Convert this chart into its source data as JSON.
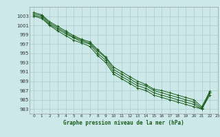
{
  "xlabel": "Graphe pression niveau de la mer (hPa)",
  "background_color": "#cce8e8",
  "grid_color": "#aacccc",
  "line_color": "#1a5c1a",
  "xlim": [
    -0.5,
    23
  ],
  "ylim": [
    982,
    1005
  ],
  "xticks": [
    0,
    1,
    2,
    3,
    4,
    5,
    6,
    7,
    8,
    9,
    10,
    11,
    12,
    13,
    14,
    15,
    16,
    17,
    18,
    19,
    20,
    21,
    22,
    23
  ],
  "yticks": [
    983,
    985,
    987,
    989,
    991,
    993,
    995,
    997,
    999,
    1001,
    1003
  ],
  "series": [
    [
      1003.5,
      1003.1,
      1001.5,
      1000.5,
      999.5,
      998.5,
      997.8,
      997.2,
      995.5,
      994.0,
      991.5,
      990.5,
      989.5,
      988.5,
      988.0,
      987.0,
      986.5,
      986.0,
      985.5,
      985.0,
      984.5,
      983.2,
      986.5
    ],
    [
      1003.2,
      1002.8,
      1001.2,
      1000.2,
      999.2,
      998.3,
      997.5,
      997.0,
      995.0,
      993.5,
      991.0,
      990.0,
      989.0,
      988.0,
      987.5,
      986.5,
      986.0,
      985.5,
      985.0,
      984.5,
      984.0,
      983.0,
      986.0
    ],
    [
      1003.0,
      1002.5,
      1001.0,
      999.8,
      998.8,
      997.8,
      997.2,
      996.5,
      994.5,
      993.0,
      990.5,
      989.5,
      988.5,
      987.5,
      987.0,
      986.0,
      985.5,
      985.0,
      984.5,
      984.0,
      983.5,
      983.0,
      986.5
    ],
    [
      1003.8,
      1003.3,
      1001.8,
      1000.8,
      999.8,
      998.8,
      998.0,
      997.5,
      995.8,
      994.2,
      992.0,
      991.0,
      990.0,
      989.0,
      988.3,
      987.3,
      987.0,
      986.5,
      986.0,
      985.5,
      985.0,
      983.5,
      986.8
    ]
  ]
}
